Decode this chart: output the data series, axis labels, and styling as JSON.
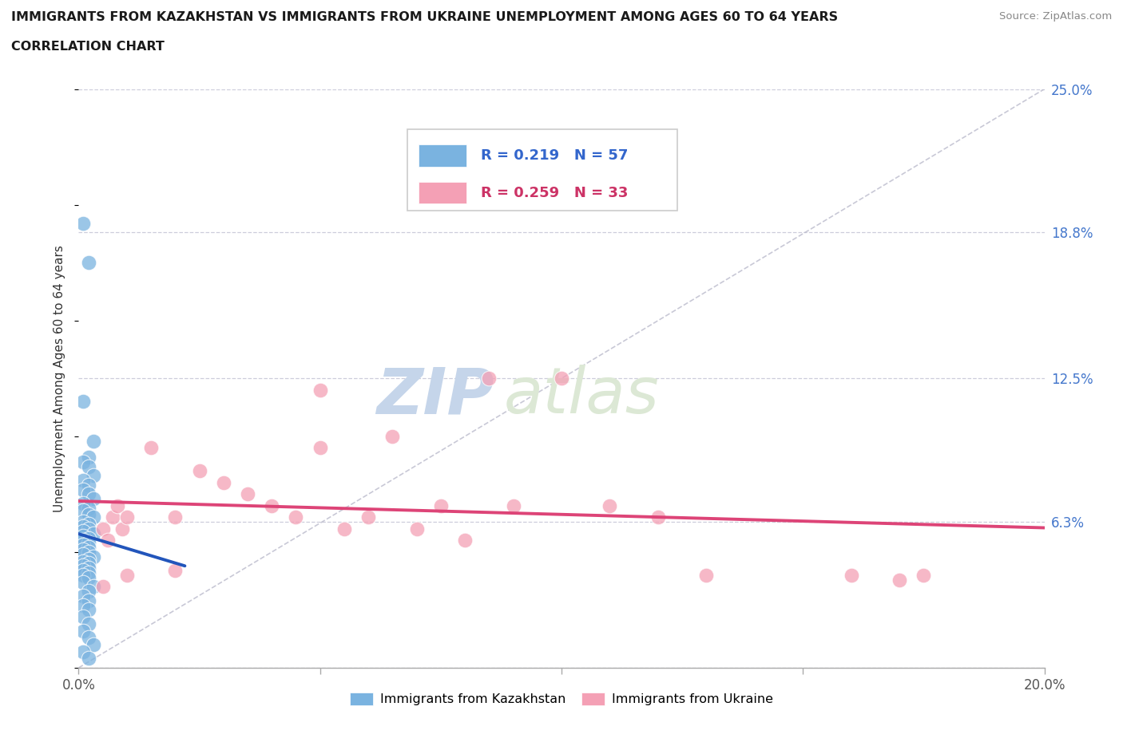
{
  "title_line1": "IMMIGRANTS FROM KAZAKHSTAN VS IMMIGRANTS FROM UKRAINE UNEMPLOYMENT AMONG AGES 60 TO 64 YEARS",
  "title_line2": "CORRELATION CHART",
  "source": "Source: ZipAtlas.com",
  "ylabel": "Unemployment Among Ages 60 to 64 years",
  "xlim": [
    0.0,
    0.2
  ],
  "ylim": [
    0.0,
    0.25
  ],
  "xticks": [
    0.0,
    0.05,
    0.1,
    0.15,
    0.2
  ],
  "yticks_right": [
    0.0,
    0.063,
    0.125,
    0.188,
    0.25
  ],
  "ytick_labels_right": [
    "",
    "6.3%",
    "12.5%",
    "18.8%",
    "25.0%"
  ],
  "xtick_labels": [
    "0.0%",
    "",
    "",
    "",
    "20.0%"
  ],
  "background_color": "#ffffff",
  "grid_color": "#c8c8d8",
  "kaz_color": "#7ab3e0",
  "ukr_color": "#f4a0b5",
  "kaz_line_color": "#2255bb",
  "ukr_line_color": "#dd4477",
  "diagonal_color": "#bbbbcc",
  "legend_kaz_label": "Immigrants from Kazakhstan",
  "legend_ukr_label": "Immigrants from Ukraine",
  "kaz_R": 0.219,
  "kaz_N": 57,
  "ukr_R": 0.259,
  "ukr_N": 33,
  "watermark_zip": "ZIP",
  "watermark_atlas": "atlas",
  "kaz_x": [
    0.001,
    0.002,
    0.001,
    0.003,
    0.002,
    0.001,
    0.002,
    0.003,
    0.001,
    0.002,
    0.001,
    0.002,
    0.003,
    0.001,
    0.002,
    0.001,
    0.002,
    0.003,
    0.001,
    0.002,
    0.001,
    0.002,
    0.001,
    0.003,
    0.001,
    0.002,
    0.001,
    0.002,
    0.001,
    0.002,
    0.001,
    0.002,
    0.001,
    0.003,
    0.002,
    0.001,
    0.002,
    0.001,
    0.002,
    0.001,
    0.002,
    0.001,
    0.002,
    0.001,
    0.003,
    0.002,
    0.001,
    0.002,
    0.001,
    0.002,
    0.001,
    0.002,
    0.001,
    0.002,
    0.003,
    0.001,
    0.002
  ],
  "kaz_y": [
    0.192,
    0.175,
    0.115,
    0.098,
    0.091,
    0.089,
    0.087,
    0.083,
    0.081,
    0.079,
    0.077,
    0.075,
    0.073,
    0.071,
    0.069,
    0.068,
    0.066,
    0.065,
    0.063,
    0.062,
    0.061,
    0.06,
    0.059,
    0.058,
    0.057,
    0.056,
    0.055,
    0.054,
    0.053,
    0.052,
    0.051,
    0.05,
    0.049,
    0.048,
    0.047,
    0.046,
    0.045,
    0.044,
    0.043,
    0.042,
    0.041,
    0.04,
    0.039,
    0.037,
    0.035,
    0.033,
    0.031,
    0.029,
    0.027,
    0.025,
    0.022,
    0.019,
    0.016,
    0.013,
    0.01,
    0.007,
    0.004
  ],
  "ukr_x": [
    0.005,
    0.006,
    0.007,
    0.008,
    0.009,
    0.01,
    0.015,
    0.02,
    0.025,
    0.03,
    0.035,
    0.04,
    0.045,
    0.05,
    0.055,
    0.06,
    0.065,
    0.07,
    0.075,
    0.08,
    0.09,
    0.1,
    0.11,
    0.12,
    0.05,
    0.085,
    0.13,
    0.16,
    0.17,
    0.175,
    0.005,
    0.01,
    0.02
  ],
  "ukr_y": [
    0.06,
    0.055,
    0.065,
    0.07,
    0.06,
    0.065,
    0.095,
    0.065,
    0.085,
    0.08,
    0.075,
    0.07,
    0.065,
    0.095,
    0.06,
    0.065,
    0.1,
    0.06,
    0.07,
    0.055,
    0.07,
    0.125,
    0.07,
    0.065,
    0.12,
    0.125,
    0.04,
    0.04,
    0.038,
    0.04,
    0.035,
    0.04,
    0.042
  ],
  "kaz_line_x0": 0.0,
  "kaz_line_x1": 0.022,
  "ukr_line_x0": 0.0,
  "ukr_line_x1": 0.2
}
